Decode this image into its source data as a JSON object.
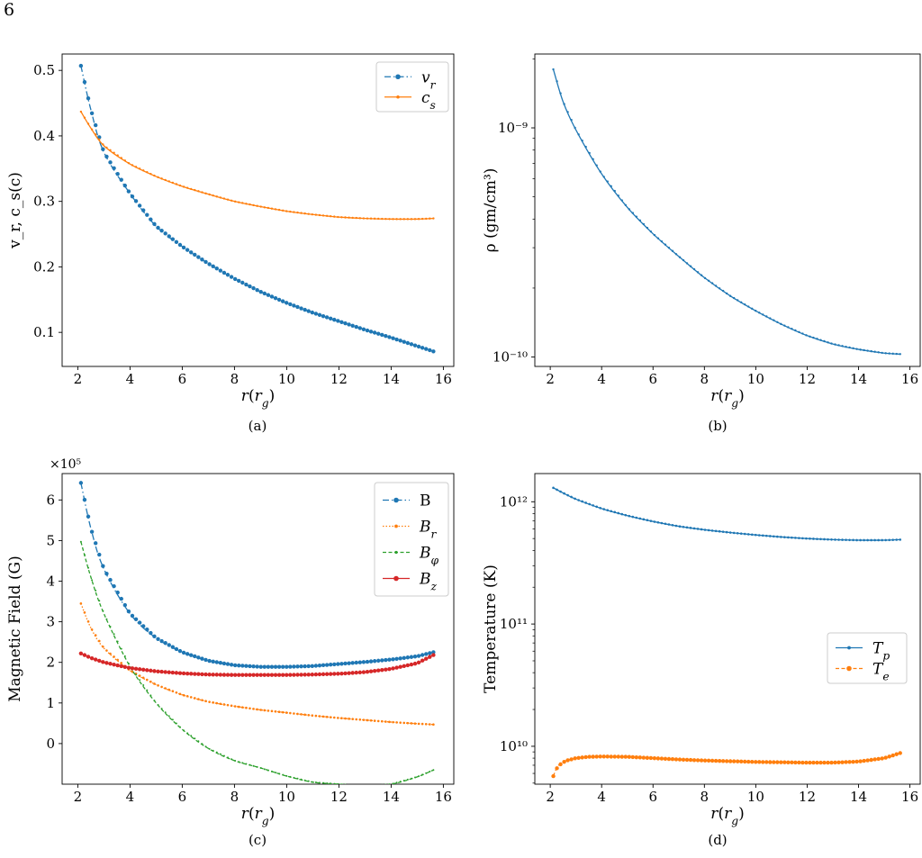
{
  "page": {
    "number": "6"
  },
  "chart_data": [
    {
      "id": "a",
      "type": "line",
      "caption": "(a)",
      "xlabel": "r(r_g)",
      "ylabel": "v_r, c_s(c)",
      "xlim": [
        1.4,
        16.4
      ],
      "ylim": [
        0.048,
        0.525
      ],
      "yscale": "linear",
      "xticks": [
        2,
        4,
        6,
        8,
        10,
        12,
        14,
        16
      ],
      "yticks": [
        0.1,
        0.2,
        0.3,
        0.4,
        0.5
      ],
      "ytick_labels": [
        "0.1",
        "0.2",
        "0.3",
        "0.4",
        "0.5"
      ],
      "legend": "top-right",
      "series": [
        {
          "name": "v_r",
          "color": "#1f77b4",
          "linestyle": "dash-dot",
          "marker": 2.2,
          "x": [
            2.12,
            2.5,
            3,
            4,
            5,
            6,
            7,
            8,
            9,
            10,
            11,
            12,
            13,
            14,
            15,
            15.62
          ],
          "y": [
            0.507,
            0.44,
            0.375,
            0.312,
            0.262,
            0.231,
            0.205,
            0.182,
            0.162,
            0.145,
            0.13,
            0.117,
            0.104,
            0.092,
            0.079,
            0.071
          ]
        },
        {
          "name": "c_s",
          "color": "#ff7f0e",
          "linestyle": "solid",
          "marker": 1.2,
          "x": [
            2.12,
            2.5,
            3,
            4,
            5,
            6,
            7,
            8,
            9,
            10,
            11,
            12,
            13,
            14,
            15,
            15.62
          ],
          "y": [
            0.437,
            0.412,
            0.385,
            0.357,
            0.338,
            0.323,
            0.311,
            0.3,
            0.292,
            0.285,
            0.28,
            0.276,
            0.274,
            0.273,
            0.273,
            0.274
          ]
        }
      ]
    },
    {
      "id": "b",
      "type": "line",
      "caption": "(b)",
      "xlabel": "r(r_g)",
      "ylabel": "ρ (gm/cm³)",
      "xlim": [
        1.4,
        16.4
      ],
      "ylim": [
        9.1e-11,
        2.1e-09
      ],
      "yscale": "log",
      "xticks": [
        2,
        4,
        6,
        8,
        10,
        12,
        14,
        16
      ],
      "yticks": [
        1e-10,
        1e-09
      ],
      "ytick_labels": [
        "10⁻¹⁰",
        "10⁻⁹"
      ],
      "legend": "none",
      "series": [
        {
          "name": "",
          "color": "#1f77b4",
          "linestyle": "solid",
          "marker": 1.2,
          "x": [
            2.12,
            2.5,
            3,
            4,
            5,
            6,
            7,
            8,
            9,
            10,
            11,
            12,
            13,
            14,
            15,
            15.62
          ],
          "y": [
            1.8e-09,
            1.3e-09,
            9.8e-10,
            6.3e-10,
            4.5e-10,
            3.45e-10,
            2.75e-10,
            2.22e-10,
            1.85e-10,
            1.59e-10,
            1.39e-10,
            1.24e-10,
            1.14e-10,
            1.08e-10,
            1.04e-10,
            1.03e-10
          ]
        }
      ]
    },
    {
      "id": "c",
      "type": "line",
      "caption": "(c)",
      "xlabel": "r(r_g)",
      "ylabel": "Magnetic Field (G)",
      "offset_text": "×10⁵",
      "xlim": [
        1.4,
        16.4
      ],
      "ylim": [
        -1.0,
        6.65
      ],
      "yscale": "linear",
      "xticks": [
        2,
        4,
        6,
        8,
        10,
        12,
        14,
        16
      ],
      "yticks": [
        0,
        1,
        2,
        3,
        4,
        5,
        6
      ],
      "ytick_labels": [
        "0",
        "1",
        "2",
        "3",
        "4",
        "5",
        "6"
      ],
      "legend": "top-right",
      "series": [
        {
          "name": "B",
          "color": "#1f77b4",
          "linestyle": "dash-dot",
          "marker": 2.2,
          "x": [
            2.12,
            2.5,
            3,
            4,
            5,
            6,
            7,
            8,
            9,
            10,
            11,
            12,
            13,
            14,
            15,
            15.62
          ],
          "y": [
            6.42,
            5.3,
            4.3,
            3.2,
            2.6,
            2.25,
            2.04,
            1.93,
            1.89,
            1.89,
            1.91,
            1.96,
            2.01,
            2.07,
            2.15,
            2.25
          ]
        },
        {
          "name": "B_r",
          "color": "#ff7f0e",
          "linestyle": "dotted",
          "marker": 1.3,
          "x": [
            2.12,
            2.5,
            3,
            4,
            5,
            6,
            7,
            8,
            9,
            10,
            11,
            12,
            13,
            14,
            15,
            15.62
          ],
          "y": [
            3.45,
            2.85,
            2.35,
            1.8,
            1.45,
            1.2,
            1.03,
            0.92,
            0.83,
            0.76,
            0.69,
            0.63,
            0.58,
            0.53,
            0.49,
            0.47
          ]
        },
        {
          "name": "B_φ",
          "color": "#2ca02c",
          "linestyle": "dashed",
          "marker": 1.0,
          "x": [
            2.12,
            2.5,
            3,
            4,
            5,
            6,
            7,
            8,
            9,
            10,
            11,
            12,
            13,
            14,
            15,
            15.62
          ],
          "y": [
            4.97,
            4.1,
            3.2,
            1.9,
            1.0,
            0.35,
            -0.12,
            -0.42,
            -0.6,
            -0.8,
            -0.95,
            -1.0,
            -1.05,
            -1.0,
            -0.82,
            -0.65
          ]
        },
        {
          "name": "B_z",
          "color": "#d62728",
          "linestyle": "solid",
          "marker": 2.2,
          "x": [
            2.12,
            2.5,
            3,
            4,
            5,
            6,
            7,
            8,
            9,
            10,
            11,
            12,
            13,
            14,
            15,
            15.62
          ],
          "y": [
            2.22,
            2.11,
            2.0,
            1.86,
            1.78,
            1.73,
            1.7,
            1.69,
            1.69,
            1.69,
            1.7,
            1.72,
            1.76,
            1.84,
            1.98,
            2.18
          ]
        }
      ]
    },
    {
      "id": "d",
      "type": "line",
      "caption": "(d)",
      "xlabel": "r(r_g)",
      "ylabel": "Temperature (K)",
      "xlim": [
        1.4,
        16.4
      ],
      "ylim": [
        4900000000.0,
        1700000000000.0
      ],
      "yscale": "log",
      "xticks": [
        2,
        4,
        6,
        8,
        10,
        12,
        14,
        16
      ],
      "yticks": [
        10000000000.0,
        100000000000.0,
        1000000000000.0
      ],
      "ytick_labels": [
        "10¹⁰",
        "10¹¹",
        "10¹²"
      ],
      "legend": "center-right",
      "series": [
        {
          "name": "T_p",
          "color": "#1f77b4",
          "linestyle": "solid",
          "marker": 1.3,
          "x": [
            2.12,
            2.5,
            3,
            4,
            5,
            6,
            7,
            8,
            9,
            10,
            11,
            12,
            13,
            14,
            15,
            15.62
          ],
          "y": [
            1300000000000.0,
            1180000000000.0,
            1050000000000.0,
            880000000000.0,
            770000000000.0,
            690000000000.0,
            630000000000.0,
            590000000000.0,
            560000000000.0,
            535000000000.0,
            515000000000.0,
            500000000000.0,
            490000000000.0,
            485000000000.0,
            485000000000.0,
            490000000000.0
          ]
        },
        {
          "name": "T_e",
          "color": "#ff7f0e",
          "linestyle": "dashed",
          "marker": 2.2,
          "x": [
            2.12,
            2.3,
            2.6,
            3,
            3.5,
            4,
            5,
            6,
            7,
            8,
            9,
            10,
            11,
            12,
            13,
            14,
            15,
            15.62
          ],
          "y": [
            5700000000.0,
            6900000000.0,
            7600000000.0,
            8000000000.0,
            8200000000.0,
            8250000000.0,
            8200000000.0,
            8000000000.0,
            7800000000.0,
            7650000000.0,
            7550000000.0,
            7450000000.0,
            7400000000.0,
            7350000000.0,
            7350000000.0,
            7500000000.0,
            8000000000.0,
            8800000000.0
          ]
        }
      ]
    }
  ]
}
